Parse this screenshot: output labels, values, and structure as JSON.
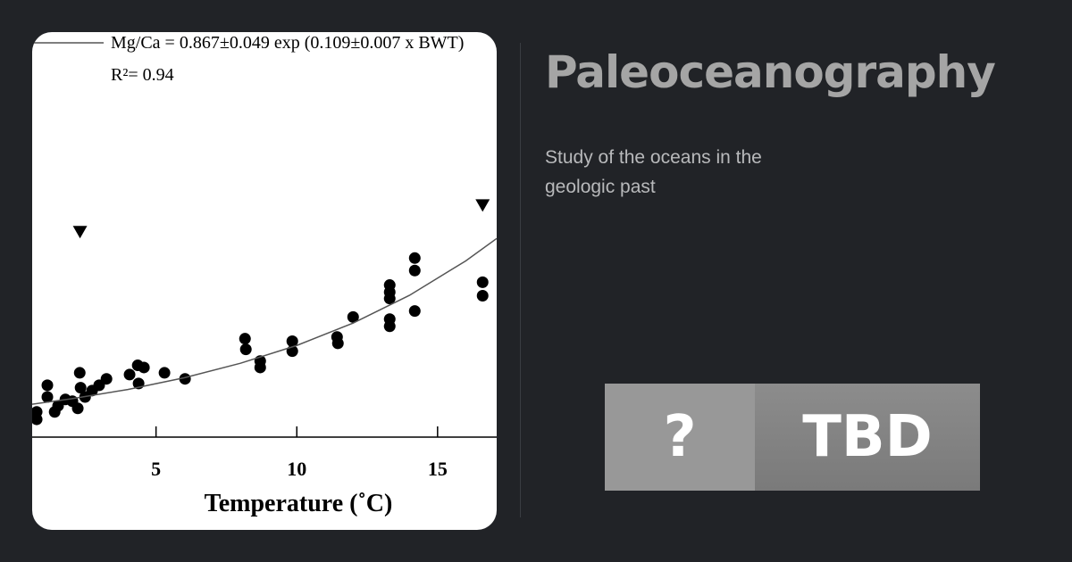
{
  "card": {
    "title": "Paleoceanography",
    "description": "Study of the oceans in the geologic past"
  },
  "badge": {
    "left": "?",
    "right": "TBD"
  },
  "figure": {
    "chart_data": {
      "type": "scatter",
      "annotations": [
        "Mg/Ca = 0.867±0.049 exp (0.109±0.007 x BWT)",
        "R²= 0.94"
      ],
      "x_label": "Temperature (˚C)",
      "xlim": [
        0.6,
        17.1
      ],
      "ylim": [
        0,
        11.4
      ],
      "xticks": [
        5,
        10,
        15
      ],
      "series": [
        {
          "color": "#000000",
          "marker": "circle",
          "x": [
            0.76,
            0.76,
            1.14,
            1.14,
            1.4,
            1.52,
            1.78,
            2.03,
            2.22,
            2.29,
            2.32,
            2.48,
            2.73,
            2.98,
            3.24,
            4.06,
            4.35,
            4.38,
            4.57,
            5.3,
            6.03,
            8.16,
            8.19,
            8.7,
            8.7,
            9.84,
            9.84,
            11.43,
            11.46,
            12.0,
            13.3,
            13.3,
            13.3,
            13.3,
            13.3,
            14.19,
            14.19,
            14.19,
            16.6,
            16.6
          ],
          "values": [
            0.71,
            0.5,
            1.46,
            1.13,
            0.71,
            0.88,
            1.06,
            1.01,
            0.81,
            1.81,
            1.39,
            1.13,
            1.31,
            1.46,
            1.64,
            1.76,
            2.02,
            1.51,
            1.96,
            1.81,
            1.64,
            2.77,
            2.47,
            2.14,
            1.96,
            2.7,
            2.42,
            2.82,
            2.64,
            3.38,
            4.28,
            4.08,
            3.9,
            3.32,
            3.12,
            5.04,
            4.69,
            3.55,
            4.36,
            3.98
          ]
        },
        {
          "color": "#000000",
          "marker": "triangle",
          "x": [
            2.3,
            16.6
          ],
          "values": [
            5.77,
            6.52
          ]
        },
        {
          "color": "#555555",
          "type": "line",
          "x": [
            0.6,
            2,
            4,
            6,
            8,
            10,
            12,
            14,
            16,
            17.1
          ],
          "values": [
            0.927,
            1.08,
            1.34,
            1.67,
            2.08,
            2.58,
            3.21,
            3.99,
            4.96,
            5.59
          ]
        }
      ]
    }
  }
}
